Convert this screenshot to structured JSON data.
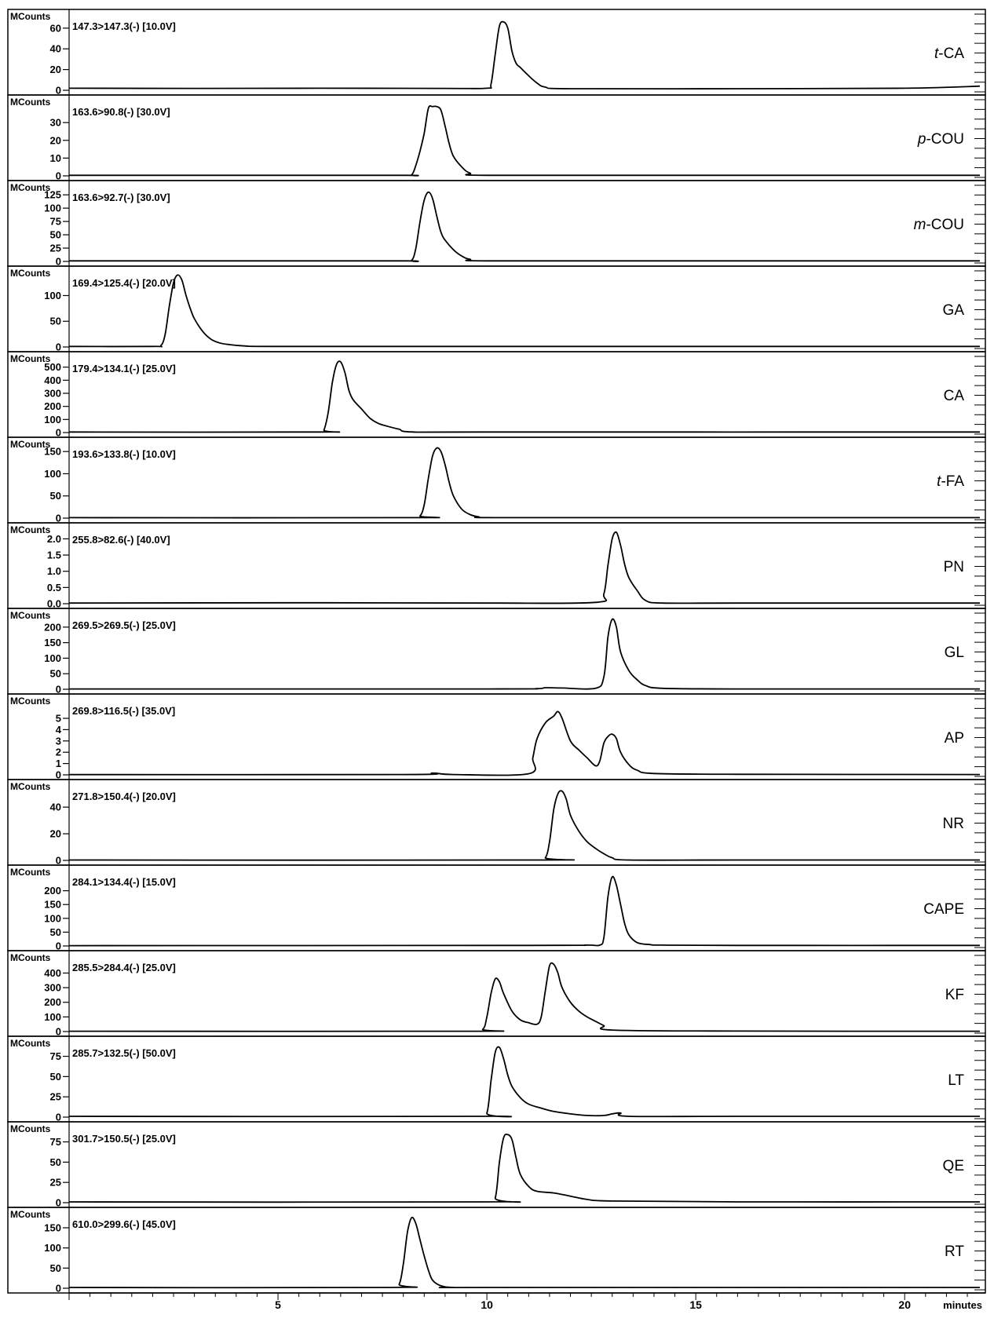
{
  "chart_data": {
    "type": "line",
    "xlabel": "minutes",
    "xlim": [
      0,
      21.8
    ],
    "xticks": [
      "5",
      "10",
      "15",
      "20"
    ],
    "xtick_values": [
      5,
      10,
      15,
      20
    ],
    "ylabel": "MCounts",
    "panels": [
      {
        "name": "t-CA",
        "prefix": "t",
        "suffix": "-CA",
        "transition": "147.3>147.3(-) [10.0V]",
        "ylim": [
          0,
          72
        ],
        "yticks": [
          0,
          20,
          40,
          60
        ],
        "ytick_labels": [
          "0",
          "20",
          "40",
          "60"
        ],
        "x": [
          0,
          3,
          6,
          9,
          10.0,
          10.1,
          10.2,
          10.3,
          10.4,
          10.5,
          10.6,
          10.7,
          10.8,
          11.0,
          11.2,
          11.4,
          12,
          16,
          20,
          21.8
        ],
        "y": [
          2,
          1.8,
          2,
          1.8,
          2,
          6,
          35,
          62,
          66,
          60,
          38,
          26,
          22,
          14,
          7,
          3,
          1.5,
          1.5,
          2,
          4
        ]
      },
      {
        "name": "p-COU",
        "prefix": "p",
        "suffix": "-COU",
        "transition": "163.6>90.8(-) [30.0V]",
        "ylim": [
          0,
          42
        ],
        "yticks": [
          0,
          10,
          20,
          30
        ],
        "ytick_labels": [
          "0",
          "10",
          "20",
          "30"
        ],
        "x": [
          0,
          4,
          8,
          8.2,
          8.3,
          8.4,
          8.5,
          8.6,
          8.7,
          8.8,
          8.9,
          9.0,
          9.1,
          9.2,
          9.4,
          9.6,
          10,
          15,
          21.8
        ],
        "y": [
          0.3,
          0.3,
          0.3,
          0.6,
          6,
          14,
          24,
          38,
          39,
          39,
          37,
          28,
          18,
          11,
          5,
          1.5,
          0.3,
          0.3,
          0.3
        ]
      },
      {
        "name": "m-COU",
        "prefix": "m",
        "suffix": "-COU",
        "transition": "163.6>92.7(-) [30.0V]",
        "ylim": [
          0,
          140
        ],
        "yticks": [
          0,
          25,
          50,
          75,
          100,
          125
        ],
        "ytick_labels": [
          "0",
          "25",
          "50",
          "75",
          "100",
          "125"
        ],
        "x": [
          0,
          4,
          8,
          8.2,
          8.3,
          8.4,
          8.5,
          8.6,
          8.7,
          8.8,
          8.9,
          9.0,
          9.2,
          9.4,
          9.6,
          10,
          15,
          21.8
        ],
        "y": [
          1,
          1,
          1,
          2,
          25,
          75,
          115,
          130,
          118,
          85,
          55,
          40,
          22,
          10,
          4,
          1,
          1,
          1
        ]
      },
      {
        "name": "GA",
        "prefix": "",
        "suffix": "GA",
        "transition": "169.4>125.4(-) [20.0V]",
        "ylim": [
          0,
          145
        ],
        "yticks": [
          0,
          50,
          100
        ],
        "ytick_labels": [
          "0",
          "50",
          "100"
        ],
        "x": [
          0,
          2,
          2.2,
          2.3,
          2.4,
          2.5,
          2.6,
          2.7,
          2.8,
          2.9,
          3.0,
          3.2,
          3.4,
          3.6,
          3.8,
          4.2,
          5,
          10,
          21.8
        ],
        "y": [
          1,
          1,
          3,
          25,
          80,
          125,
          140,
          130,
          100,
          75,
          55,
          30,
          15,
          8,
          5,
          2,
          1,
          1,
          1
        ]
      },
      {
        "name": "CA",
        "prefix": "",
        "suffix": "CA",
        "transition": "179.4>134.1(-) [25.0V]",
        "ylim": [
          0,
          570
        ],
        "yticks": [
          0,
          100,
          200,
          300,
          400,
          500
        ],
        "ytick_labels": [
          "0",
          "100",
          "200",
          "300",
          "400",
          "500"
        ],
        "x": [
          0,
          6,
          6.1,
          6.2,
          6.3,
          6.4,
          6.5,
          6.6,
          6.7,
          6.8,
          7.0,
          7.2,
          7.4,
          7.6,
          7.9,
          8.2,
          10,
          21.8
        ],
        "y": [
          4,
          4,
          20,
          150,
          380,
          520,
          540,
          460,
          320,
          250,
          180,
          110,
          70,
          50,
          25,
          5,
          4,
          4
        ]
      },
      {
        "name": "t-FA",
        "prefix": "t",
        "suffix": "-FA",
        "transition": "193.6>133.8(-) [10.0V]",
        "ylim": [
          0,
          168
        ],
        "yticks": [
          0,
          50,
          100,
          150
        ],
        "ytick_labels": [
          "0",
          "50",
          "100",
          "150"
        ],
        "x": [
          0,
          8.2,
          8.4,
          8.5,
          8.6,
          8.7,
          8.8,
          8.9,
          9.0,
          9.1,
          9.2,
          9.4,
          9.6,
          9.8,
          10.2,
          15,
          21.8
        ],
        "y": [
          1,
          1,
          5,
          30,
          90,
          140,
          158,
          150,
          120,
          80,
          50,
          20,
          8,
          3,
          1,
          1,
          1
        ]
      },
      {
        "name": "PN",
        "prefix": "",
        "suffix": "PN",
        "transition": "255.8>82.6(-) [40.0V]",
        "ylim": [
          0,
          2.3
        ],
        "yticks": [
          0,
          0.5,
          1.0,
          1.5,
          2.0
        ],
        "ytick_labels": [
          "0.0",
          "0.5",
          "1.0",
          "1.5",
          "2.0"
        ],
        "x": [
          0,
          6,
          10,
          12.6,
          12.8,
          12.9,
          13.0,
          13.1,
          13.2,
          13.3,
          13.4,
          13.6,
          13.8,
          14.2,
          16,
          21.8
        ],
        "y": [
          0.02,
          0.03,
          0.02,
          0.04,
          0.3,
          1.2,
          2.0,
          2.2,
          1.8,
          1.2,
          0.8,
          0.4,
          0.1,
          0.02,
          0.02,
          0.02
        ]
      },
      {
        "name": "GL",
        "prefix": "",
        "suffix": "GL",
        "transition": "269.5>269.5(-) [25.0V]",
        "ylim": [
          0,
          240
        ],
        "yticks": [
          0,
          50,
          100,
          150,
          200
        ],
        "ytick_labels": [
          "0",
          "50",
          "100",
          "150",
          "200"
        ],
        "x": [
          0,
          10,
          11.2,
          11.4,
          11.8,
          12.6,
          12.8,
          12.9,
          13.0,
          13.1,
          13.2,
          13.4,
          13.6,
          13.8,
          14.2,
          16,
          21.8
        ],
        "y": [
          1,
          1,
          2,
          5,
          4,
          3,
          40,
          170,
          225,
          200,
          120,
          60,
          30,
          12,
          3,
          1,
          1
        ]
      },
      {
        "name": "AP",
        "prefix": "",
        "suffix": "AP",
        "transition": "269.8>116.5(-) [35.0V]",
        "ylim": [
          0,
          6.6
        ],
        "yticks": [
          0,
          1,
          2,
          3,
          4,
          5
        ],
        "ytick_labels": [
          "0",
          "1",
          "2",
          "3",
          "4",
          "5"
        ],
        "x": [
          0,
          8,
          8.7,
          9.2,
          11.0,
          11.1,
          11.2,
          11.4,
          11.6,
          11.7,
          11.8,
          12.0,
          12.2,
          12.4,
          12.6,
          12.7,
          12.8,
          12.9,
          13.0,
          13.1,
          13.2,
          13.4,
          13.6,
          14,
          16,
          21.8
        ],
        "y": [
          0.02,
          0.03,
          0.15,
          0.03,
          0.1,
          1.5,
          3.2,
          4.6,
          5.2,
          5.6,
          5.0,
          3.0,
          2.2,
          1.5,
          0.8,
          1.2,
          2.8,
          3.4,
          3.6,
          3.2,
          2.0,
          0.9,
          0.4,
          0.12,
          0.05,
          0.03
        ]
      },
      {
        "name": "NR",
        "prefix": "",
        "suffix": "NR",
        "transition": "271.8>150.4(-) [20.0V]",
        "ylim": [
          0,
          56
        ],
        "yticks": [
          0,
          20,
          40
        ],
        "ytick_labels": [
          "0",
          "20",
          "40"
        ],
        "x": [
          0,
          11.2,
          11.4,
          11.5,
          11.6,
          11.7,
          11.8,
          11.9,
          12.0,
          12.2,
          12.4,
          12.6,
          12.8,
          13.0,
          13.4,
          16,
          21.8
        ],
        "y": [
          0.3,
          0.3,
          2,
          14,
          38,
          50,
          52,
          46,
          34,
          22,
          14,
          9,
          5,
          2,
          0.3,
          0.3,
          0.3
        ]
      },
      {
        "name": "CAPE",
        "prefix": "",
        "suffix": "CAPE",
        "transition": "284.1>134.4(-) [15.0V]",
        "ylim": [
          0,
          270
        ],
        "yticks": [
          0,
          50,
          100,
          150,
          200
        ],
        "ytick_labels": [
          "0",
          "50",
          "100",
          "150",
          "200"
        ],
        "x": [
          0,
          11,
          12.4,
          12.7,
          12.8,
          12.9,
          13.0,
          13.1,
          13.2,
          13.3,
          13.4,
          13.6,
          13.9,
          14.2,
          16,
          21.8
        ],
        "y": [
          1,
          2,
          3,
          3,
          30,
          180,
          250,
          220,
          150,
          80,
          40,
          12,
          5,
          3,
          2,
          2
        ]
      },
      {
        "name": "KF",
        "prefix": "",
        "suffix": "KF",
        "transition": "285.5>284.4(-) [25.0V]",
        "ylim": [
          0,
          510
        ],
        "yticks": [
          0,
          100,
          200,
          300,
          400
        ],
        "ytick_labels": [
          "0",
          "100",
          "200",
          "300",
          "400"
        ],
        "x": [
          0,
          9.6,
          9.9,
          10.0,
          10.1,
          10.2,
          10.3,
          10.4,
          10.6,
          10.8,
          11.0,
          11.2,
          11.3,
          11.4,
          11.5,
          11.6,
          11.7,
          11.8,
          12.0,
          12.2,
          12.4,
          12.6,
          12.8,
          13.0,
          16,
          21.8
        ],
        "y": [
          2,
          2,
          15,
          100,
          260,
          360,
          340,
          260,
          140,
          80,
          60,
          50,
          100,
          280,
          450,
          460,
          400,
          300,
          200,
          140,
          100,
          70,
          40,
          10,
          3,
          2
        ]
      },
      {
        "name": "LT",
        "prefix": "",
        "suffix": "LT",
        "transition": "285.7>132.5(-) [50.0V]",
        "ylim": [
          0,
          92
        ],
        "yticks": [
          0,
          25,
          50,
          75
        ],
        "ytick_labels": [
          "0",
          "25",
          "50",
          "75"
        ],
        "x": [
          0,
          9.8,
          10.0,
          10.1,
          10.2,
          10.3,
          10.4,
          10.5,
          10.6,
          10.8,
          11.0,
          11.3,
          11.6,
          12.0,
          12.4,
          12.8,
          13.0,
          13.2,
          13.4,
          16,
          21.8
        ],
        "y": [
          1,
          1,
          5,
          45,
          80,
          86,
          72,
          52,
          38,
          24,
          16,
          11,
          7,
          4,
          2,
          2,
          4,
          5,
          1,
          1,
          1
        ]
      },
      {
        "name": "QE",
        "prefix": "",
        "suffix": "QE",
        "transition": "301.7>150.5(-) [25.0V]",
        "ylim": [
          0,
          92
        ],
        "yticks": [
          0,
          25,
          50,
          75
        ],
        "ytick_labels": [
          "0",
          "25",
          "50",
          "75"
        ],
        "x": [
          0,
          10.0,
          10.2,
          10.3,
          10.4,
          10.5,
          10.6,
          10.7,
          10.8,
          11.0,
          11.2,
          11.6,
          12.0,
          12.4,
          13.0,
          16,
          21.8
        ],
        "y": [
          1,
          1,
          6,
          50,
          80,
          84,
          78,
          55,
          35,
          20,
          14,
          12,
          8,
          4,
          2,
          1,
          1
        ]
      },
      {
        "name": "RT",
        "prefix": "",
        "suffix": "RT",
        "transition": "610.0>299.6(-) [45.0V]",
        "ylim": [
          0,
          185
        ],
        "yticks": [
          0,
          50,
          100,
          150
        ],
        "ytick_labels": [
          "0",
          "50",
          "100",
          "150"
        ],
        "x": [
          0,
          7.7,
          7.9,
          8.0,
          8.1,
          8.2,
          8.3,
          8.4,
          8.5,
          8.6,
          8.7,
          8.9,
          9.2,
          10,
          21.8
        ],
        "y": [
          2,
          2,
          10,
          60,
          140,
          175,
          160,
          120,
          80,
          45,
          20,
          6,
          2,
          2,
          2
        ]
      }
    ]
  }
}
